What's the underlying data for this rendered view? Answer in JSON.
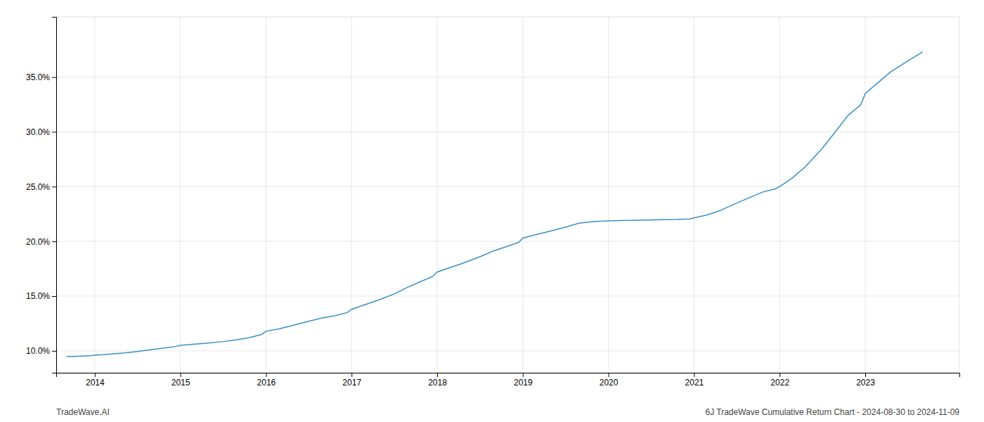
{
  "chart_data": {
    "type": "line",
    "x": [
      2013.67,
      2013.75,
      2013.85,
      2013.95,
      2014.0,
      2014.1,
      2014.2,
      2014.35,
      2014.5,
      2014.65,
      2014.8,
      2014.95,
      2015.0,
      2015.15,
      2015.3,
      2015.5,
      2015.65,
      2015.8,
      2015.95,
      2016.0,
      2016.15,
      2016.3,
      2016.5,
      2016.65,
      2016.8,
      2016.95,
      2017.0,
      2017.15,
      2017.3,
      2017.5,
      2017.65,
      2017.8,
      2017.95,
      2018.0,
      2018.15,
      2018.3,
      2018.5,
      2018.65,
      2018.8,
      2018.95,
      2019.0,
      2019.15,
      2019.3,
      2019.5,
      2019.65,
      2019.8,
      2019.95,
      2020.0,
      2020.15,
      2020.3,
      2020.5,
      2020.65,
      2020.8,
      2020.95,
      2021.0,
      2021.15,
      2021.3,
      2021.5,
      2021.65,
      2021.8,
      2021.95,
      2022.0,
      2022.15,
      2022.3,
      2022.5,
      2022.65,
      2022.8,
      2022.95,
      2023.0,
      2023.15,
      2023.3,
      2023.5,
      2023.67
    ],
    "values": [
      9.5,
      9.5,
      9.52,
      9.55,
      9.6,
      9.65,
      9.72,
      9.82,
      9.95,
      10.1,
      10.25,
      10.4,
      10.5,
      10.6,
      10.7,
      10.85,
      11.0,
      11.2,
      11.5,
      11.8,
      12.0,
      12.3,
      12.7,
      13.0,
      13.2,
      13.5,
      13.8,
      14.2,
      14.6,
      15.2,
      15.8,
      16.3,
      16.8,
      17.2,
      17.6,
      18.0,
      18.6,
      19.1,
      19.5,
      19.9,
      20.3,
      20.6,
      20.9,
      21.3,
      21.65,
      21.8,
      21.85,
      21.88,
      21.9,
      21.92,
      21.95,
      21.98,
      22.0,
      22.05,
      22.15,
      22.4,
      22.8,
      23.5,
      24.0,
      24.5,
      24.8,
      25.0,
      25.8,
      26.8,
      28.5,
      30.0,
      31.5,
      32.5,
      33.5,
      34.5,
      35.5,
      36.5,
      37.3
    ],
    "color": "#3a8fc7",
    "xlim": [
      2013.55,
      2024.1
    ],
    "ylim": [
      8.0,
      40.5
    ],
    "xticks": [
      2014,
      2015,
      2016,
      2017,
      2018,
      2019,
      2020,
      2021,
      2022,
      2023
    ],
    "yticks": [
      {
        "value": 10.0,
        "label": "10.0%"
      },
      {
        "value": 15.0,
        "label": "15.0%"
      },
      {
        "value": 20.0,
        "label": "20.0%"
      },
      {
        "value": 25.0,
        "label": "25.0%"
      },
      {
        "value": 30.0,
        "label": "30.0%"
      },
      {
        "value": 35.0,
        "label": "35.0%"
      }
    ],
    "grid": true,
    "annotations": [
      "TradeWave.AI",
      "6J TradeWave Cumulative Return Chart - 2024-08-30 to 2024-11-09"
    ]
  }
}
